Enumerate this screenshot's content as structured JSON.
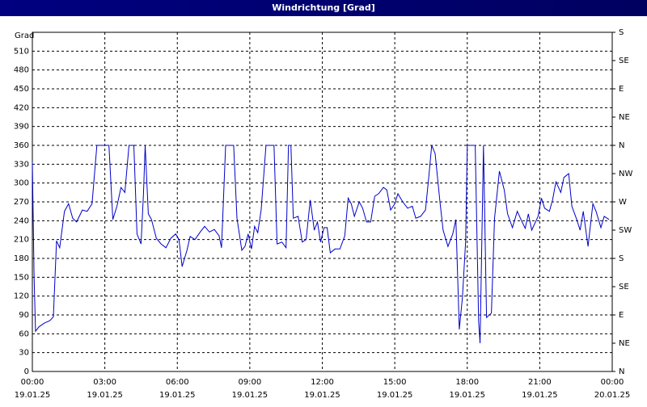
{
  "chart_data": {
    "type": "line",
    "title": "Windrichtung [Grad]",
    "y_label": "Grad",
    "xlim": [
      0,
      24
    ],
    "xticks": [
      {
        "value": 0,
        "label": "00:00",
        "date": "19.01.25"
      },
      {
        "value": 3,
        "label": "03:00",
        "date": "19.01.25"
      },
      {
        "value": 6,
        "label": "06:00",
        "date": "19.01.25"
      },
      {
        "value": 9,
        "label": "09:00",
        "date": "19.01.25"
      },
      {
        "value": 12,
        "label": "12:00",
        "date": "19.01.25"
      },
      {
        "value": 15,
        "label": "15:00",
        "date": "19.01.25"
      },
      {
        "value": 18,
        "label": "18:00",
        "date": "19.01.25"
      },
      {
        "value": 21,
        "label": "21:00",
        "date": "19.01.25"
      },
      {
        "value": 24,
        "label": "00:00",
        "date": "20.01.25"
      }
    ],
    "ylim": [
      0,
      540
    ],
    "yticks": [
      0,
      30,
      60,
      90,
      120,
      150,
      180,
      210,
      240,
      270,
      300,
      330,
      360,
      390,
      420,
      450,
      480,
      510
    ],
    "y2lim": [
      0,
      540
    ],
    "y2ticks": [
      {
        "value": 0,
        "label": "N"
      },
      {
        "value": 45,
        "label": "NE"
      },
      {
        "value": 90,
        "label": "E"
      },
      {
        "value": 135,
        "label": "SE"
      },
      {
        "value": 180,
        "label": "S"
      },
      {
        "value": 225,
        "label": "SW"
      },
      {
        "value": 270,
        "label": "W"
      },
      {
        "value": 315,
        "label": "NW"
      },
      {
        "value": 360,
        "label": "N"
      },
      {
        "value": 405,
        "label": "NE"
      },
      {
        "value": 450,
        "label": "E"
      },
      {
        "value": 495,
        "label": "SE"
      },
      {
        "value": 540,
        "label": "S"
      }
    ],
    "grid": true,
    "series": [
      {
        "color": "#0000c8",
        "x": [
          0,
          0.07,
          0.13,
          0.27,
          0.5,
          0.73,
          0.87,
          1,
          1.13,
          1.33,
          1.5,
          1.67,
          1.83,
          2.07,
          2.27,
          2.47,
          2.67,
          3.07,
          3.17,
          3.33,
          3.5,
          3.67,
          3.83,
          4,
          4.2,
          4.33,
          4.5,
          4.6,
          4.67,
          4.8,
          4.93,
          5.13,
          5.33,
          5.53,
          5.73,
          5.93,
          6.07,
          6.2,
          6.4,
          6.53,
          6.73,
          6.93,
          7.13,
          7.33,
          7.53,
          7.73,
          7.83,
          8,
          8.33,
          8.47,
          8.67,
          8.8,
          8.93,
          9.07,
          9.2,
          9.33,
          9.47,
          9.67,
          10,
          10.13,
          10.33,
          10.5,
          10.6,
          10.7,
          10.8,
          11,
          11.17,
          11.33,
          11.5,
          11.67,
          11.8,
          11.93,
          12.07,
          12.2,
          12.33,
          12.53,
          12.73,
          12.93,
          13.07,
          13.2,
          13.33,
          13.53,
          13.67,
          13.83,
          14,
          14.17,
          14.33,
          14.53,
          14.67,
          14.83,
          15,
          15.13,
          15.33,
          15.53,
          15.73,
          15.87,
          16.07,
          16.27,
          16.4,
          16.53,
          16.67,
          16.87,
          17,
          17.2,
          17.4,
          17.53,
          17.67,
          17.8,
          17.93,
          18,
          18.33,
          18.47,
          18.53,
          18.67,
          18.8,
          19,
          19.13,
          19.33,
          19.53,
          19.67,
          19.87,
          20.07,
          20.27,
          20.4,
          20.53,
          20.67,
          20.93,
          21.07,
          21.2,
          21.4,
          21.53,
          21.67,
          21.87,
          22,
          22.2,
          22.33,
          22.53,
          22.67,
          22.8,
          23,
          23.2,
          23.33,
          23.53,
          23.67,
          23.87
        ],
        "values": [
          334,
          154,
          64,
          71,
          77,
          81,
          87,
          208,
          197,
          255,
          267,
          244,
          238,
          257,
          255,
          267,
          360,
          360,
          360,
          242,
          263,
          293,
          285,
          360,
          360,
          219,
          203,
          283,
          360,
          251,
          242,
          212,
          203,
          197,
          212,
          219,
          210,
          167,
          193,
          215,
          210,
          221,
          231,
          222,
          226,
          216,
          197,
          360,
          360,
          244,
          193,
          199,
          219,
          195,
          231,
          221,
          257,
          360,
          360,
          203,
          206,
          197,
          360,
          360,
          244,
          247,
          206,
          210,
          273,
          225,
          238,
          206,
          229,
          229,
          189,
          195,
          195,
          216,
          276,
          267,
          247,
          270,
          260,
          238,
          238,
          279,
          283,
          293,
          289,
          257,
          267,
          283,
          270,
          260,
          263,
          244,
          247,
          257,
          306,
          360,
          347,
          270,
          225,
          199,
          219,
          242,
          67,
          118,
          206,
          360,
          360,
          80,
          45,
          360,
          86,
          93,
          244,
          319,
          289,
          251,
          229,
          255,
          238,
          228,
          251,
          225,
          247,
          276,
          260,
          255,
          273,
          302,
          285,
          309,
          315,
          263,
          242,
          225,
          255,
          199,
          267,
          255,
          229,
          247,
          242
        ]
      }
    ]
  }
}
